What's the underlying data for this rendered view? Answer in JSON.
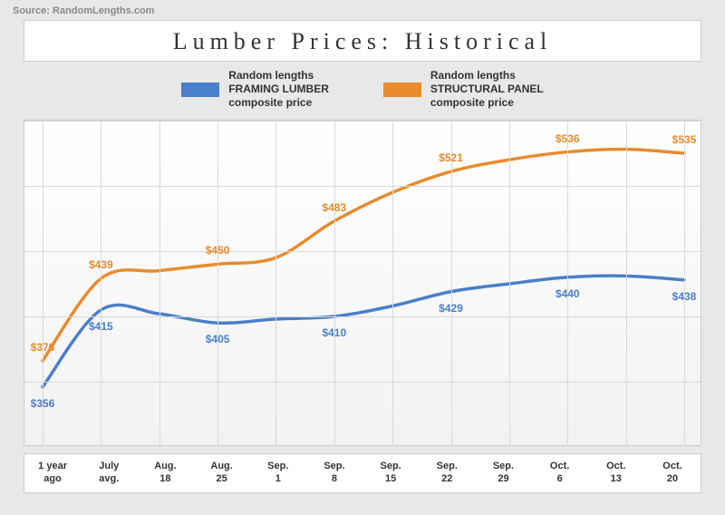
{
  "source": "Source: RandomLengths.com",
  "title": "Lumber Prices: Historical",
  "colors": {
    "framing": "#4a7fc9",
    "structural": "#e88b2d",
    "background": "#e8e8e8",
    "panel_bg_top": "#ffffff",
    "panel_bg_bottom": "#f2f2f2",
    "border": "#cccccc",
    "grid": "#d9d9d9",
    "text": "#333333"
  },
  "legend": {
    "framing": {
      "l1": "Random lengths",
      "l2": "FRAMING LUMBER",
      "l3": "composite price"
    },
    "structural": {
      "l1": "Random lengths",
      "l2": "STRUCTURAL PANEL",
      "l3": "composite price"
    }
  },
  "chart": {
    "type": "line",
    "line_width": 3.5,
    "ylim": [
      310,
      560
    ],
    "y_gridlines": [
      360,
      410,
      460,
      510,
      560
    ],
    "categories": [
      "1 year\nago",
      "July\navg.",
      "Aug.\n18",
      "Aug.\n25",
      "Sep.\n1",
      "Sep.\n8",
      "Sep.\n15",
      "Sep.\n22",
      "Sep.\n29",
      "Oct.\n6",
      "Oct.\n13",
      "Oct.\n20"
    ],
    "series": {
      "framing": {
        "values": [
          356,
          415,
          412,
          405,
          408,
          410,
          418,
          429,
          435,
          440,
          441,
          438
        ],
        "labels": {
          "0": "$356",
          "1": "$415",
          "3": "$405",
          "5": "$410",
          "7": "$429",
          "9": "$440",
          "11": "$438"
        },
        "label_offset_y": 18
      },
      "structural": {
        "values": [
          376,
          439,
          445,
          450,
          455,
          483,
          505,
          521,
          530,
          536,
          538,
          535
        ],
        "labels": {
          "0": "$376",
          "1": "$439",
          "3": "$450",
          "5": "$483",
          "7": "$521",
          "9": "$536",
          "11": "$535"
        },
        "label_offset_y": -15
      }
    }
  }
}
